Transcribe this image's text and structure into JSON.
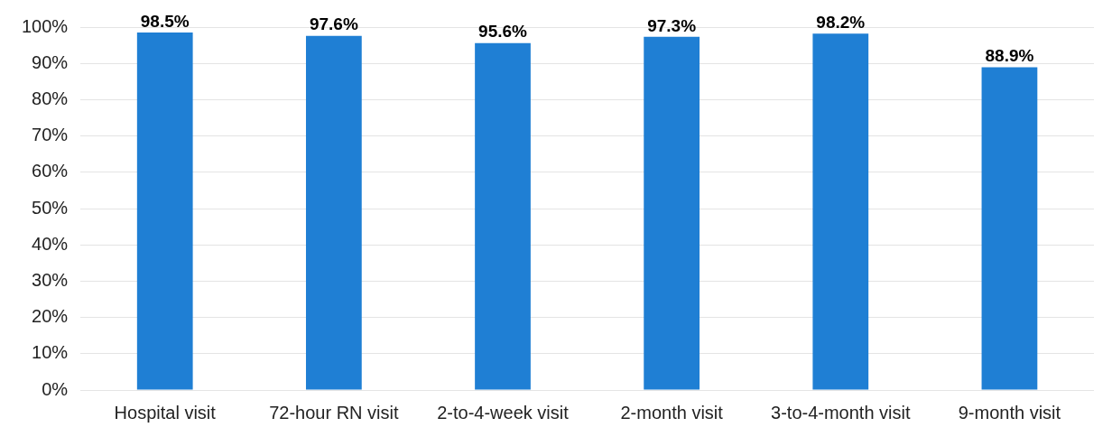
{
  "chart_data": {
    "type": "bar",
    "categories": [
      "Hospital visit",
      "72-hour RN visit",
      "2-to-4-week visit",
      "2-month visit",
      "3-to-4-month visit",
      "9-month visit"
    ],
    "values": [
      98.5,
      97.6,
      95.6,
      97.3,
      98.2,
      88.9
    ],
    "value_labels": [
      "98.5%",
      "97.6%",
      "95.6%",
      "97.3%",
      "98.2%",
      "88.9%"
    ],
    "color": "#1f7fd4",
    "ylim": [
      0,
      100
    ],
    "yticks": [
      {
        "value": 0,
        "label": "0%"
      },
      {
        "value": 10,
        "label": "10%"
      },
      {
        "value": 20,
        "label": "20%"
      },
      {
        "value": 30,
        "label": "30%"
      },
      {
        "value": 40,
        "label": "40%"
      },
      {
        "value": 50,
        "label": "50%"
      },
      {
        "value": 60,
        "label": "60%"
      },
      {
        "value": 70,
        "label": "70%"
      },
      {
        "value": 80,
        "label": "80%"
      },
      {
        "value": 90,
        "label": "90%"
      },
      {
        "value": 100,
        "label": "100%"
      }
    ],
    "grid": "y"
  }
}
